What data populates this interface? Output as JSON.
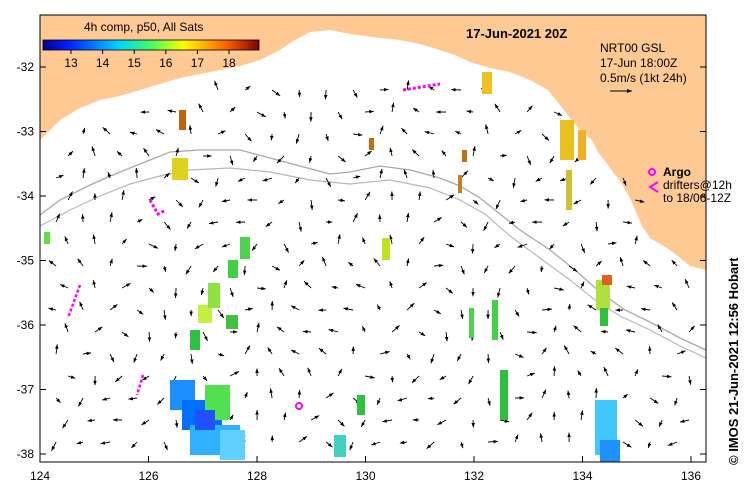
{
  "map": {
    "date_title": "17-Jun-2021 20Z",
    "credit": "© IMOS 21-Jun-2021 12:56 Hobart",
    "lon_ticks": [
      "124",
      "126",
      "128",
      "130",
      "132",
      "134",
      "136"
    ],
    "lat_ticks": [
      "-32",
      "-33",
      "-34",
      "-35",
      "-36",
      "-37",
      "-38"
    ],
    "land_color": "#ffc994",
    "isobath_color": "#a8a8a8"
  },
  "colorbar": {
    "title": "4h comp, p50, All Sats",
    "labels": [
      "13",
      "14",
      "15",
      "16",
      "17",
      "18"
    ],
    "colormap": "jet"
  },
  "current_legend": {
    "line1": "NRT00 GSL",
    "line2": "17-Jun 18:00Z",
    "line3": "0.5m/s (1kt 24h)"
  },
  "argo_legend": {
    "label": "Argo",
    "line1": "drifters@12h",
    "line2": "to 18/06-12Z"
  }
}
